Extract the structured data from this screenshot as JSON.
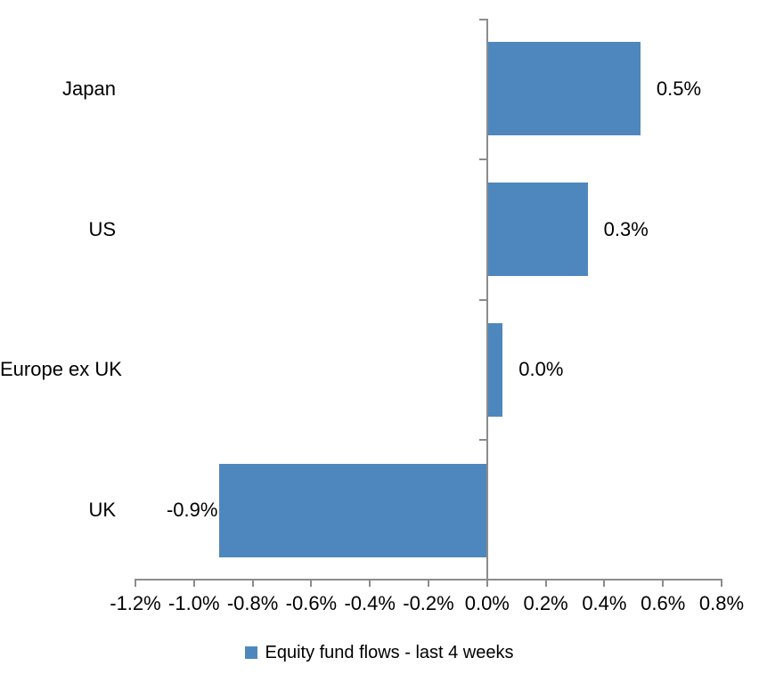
{
  "chart_data": {
    "type": "bar",
    "orientation": "horizontal",
    "title": "",
    "categories": [
      "Japan",
      "US",
      "Europe ex UK",
      "UK"
    ],
    "series": [
      {
        "name": "Equity fund flows - last 4 weeks",
        "values": [
          0.52,
          0.34,
          0.05,
          -0.91
        ],
        "labels": [
          "0.5%",
          "0.3%",
          "0.0%",
          "-0.9%"
        ]
      }
    ],
    "xlabel": "",
    "ylabel": "",
    "xlim": [
      -1.2,
      0.8
    ],
    "x_tick_step": 0.2,
    "x_tick_labels": [
      "-1.2%",
      "-1.0%",
      "-0.8%",
      "-0.6%",
      "-0.4%",
      "-0.2%",
      "0.0%",
      "0.2%",
      "0.4%",
      "0.6%",
      "0.8%"
    ],
    "grid": false,
    "legend_position": "bottom",
    "colors": {
      "bar": "#4E87BD",
      "axis": "#8C8C8C",
      "text": "#000000",
      "background": "#FFFFFF"
    }
  }
}
